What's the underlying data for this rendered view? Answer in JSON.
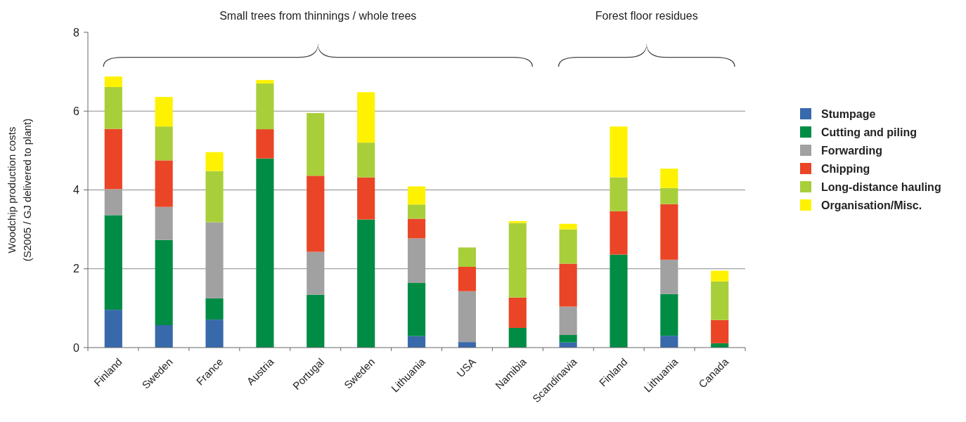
{
  "chart_data": {
    "type": "bar",
    "stacked": true,
    "ylabel": "Woodchip production costs\n(S2005 / GJ delivered to plant)",
    "categories": [
      "Finland",
      "Sweden",
      "France",
      "Austria",
      "Portugal",
      "Sweden",
      "Lithuania",
      "USA",
      "Namibia",
      "Scandinavia",
      "Finland",
      "Lithuania",
      "Canada"
    ],
    "series": [
      {
        "name": "Stumpage",
        "color": "#3869ab",
        "values": [
          0.96,
          0.57,
          0.71,
          0,
          0,
          0,
          0.29,
          0.14,
          0,
          0.13,
          0,
          0.3,
          0
        ]
      },
      {
        "name": "Cutting and piling",
        "color": "#008c45",
        "values": [
          2.4,
          2.16,
          0.54,
          4.8,
          1.34,
          3.25,
          1.35,
          0,
          0.5,
          0.19,
          2.36,
          1.06,
          0.11
        ]
      },
      {
        "name": "Forwarding",
        "color": "#a1a1a1",
        "values": [
          0.66,
          0.84,
          1.93,
          0,
          1.09,
          0,
          1.13,
          1.29,
          0,
          0.72,
          0,
          0.87,
          0
        ]
      },
      {
        "name": "Chipping",
        "color": "#ea4526",
        "values": [
          1.53,
          1.18,
          0,
          0.74,
          1.93,
          1.07,
          0.5,
          0.62,
          0.77,
          1.09,
          1.1,
          1.41,
          0.59
        ]
      },
      {
        "name": "Long-distance hauling",
        "color": "#a8cf39",
        "values": [
          1.06,
          0.86,
          1.3,
          1.16,
          1.59,
          0.88,
          0.36,
          0.49,
          1.89,
          0.87,
          0.86,
          0.41,
          0.98
        ]
      },
      {
        "name": "Organisation/Misc.",
        "color": "#fff200",
        "values": [
          0.27,
          0.75,
          0.48,
          0.09,
          0,
          1.28,
          0.46,
          0,
          0.05,
          0.14,
          1.29,
          0.49,
          0.27
        ]
      }
    ],
    "ylim": [
      0,
      8
    ],
    "yticks": [
      0,
      2,
      4,
      6,
      8
    ],
    "grid": "y",
    "legend": "right",
    "annotations": [
      "Small trees from thinnings  / whole trees",
      "Forest floor residues"
    ]
  }
}
